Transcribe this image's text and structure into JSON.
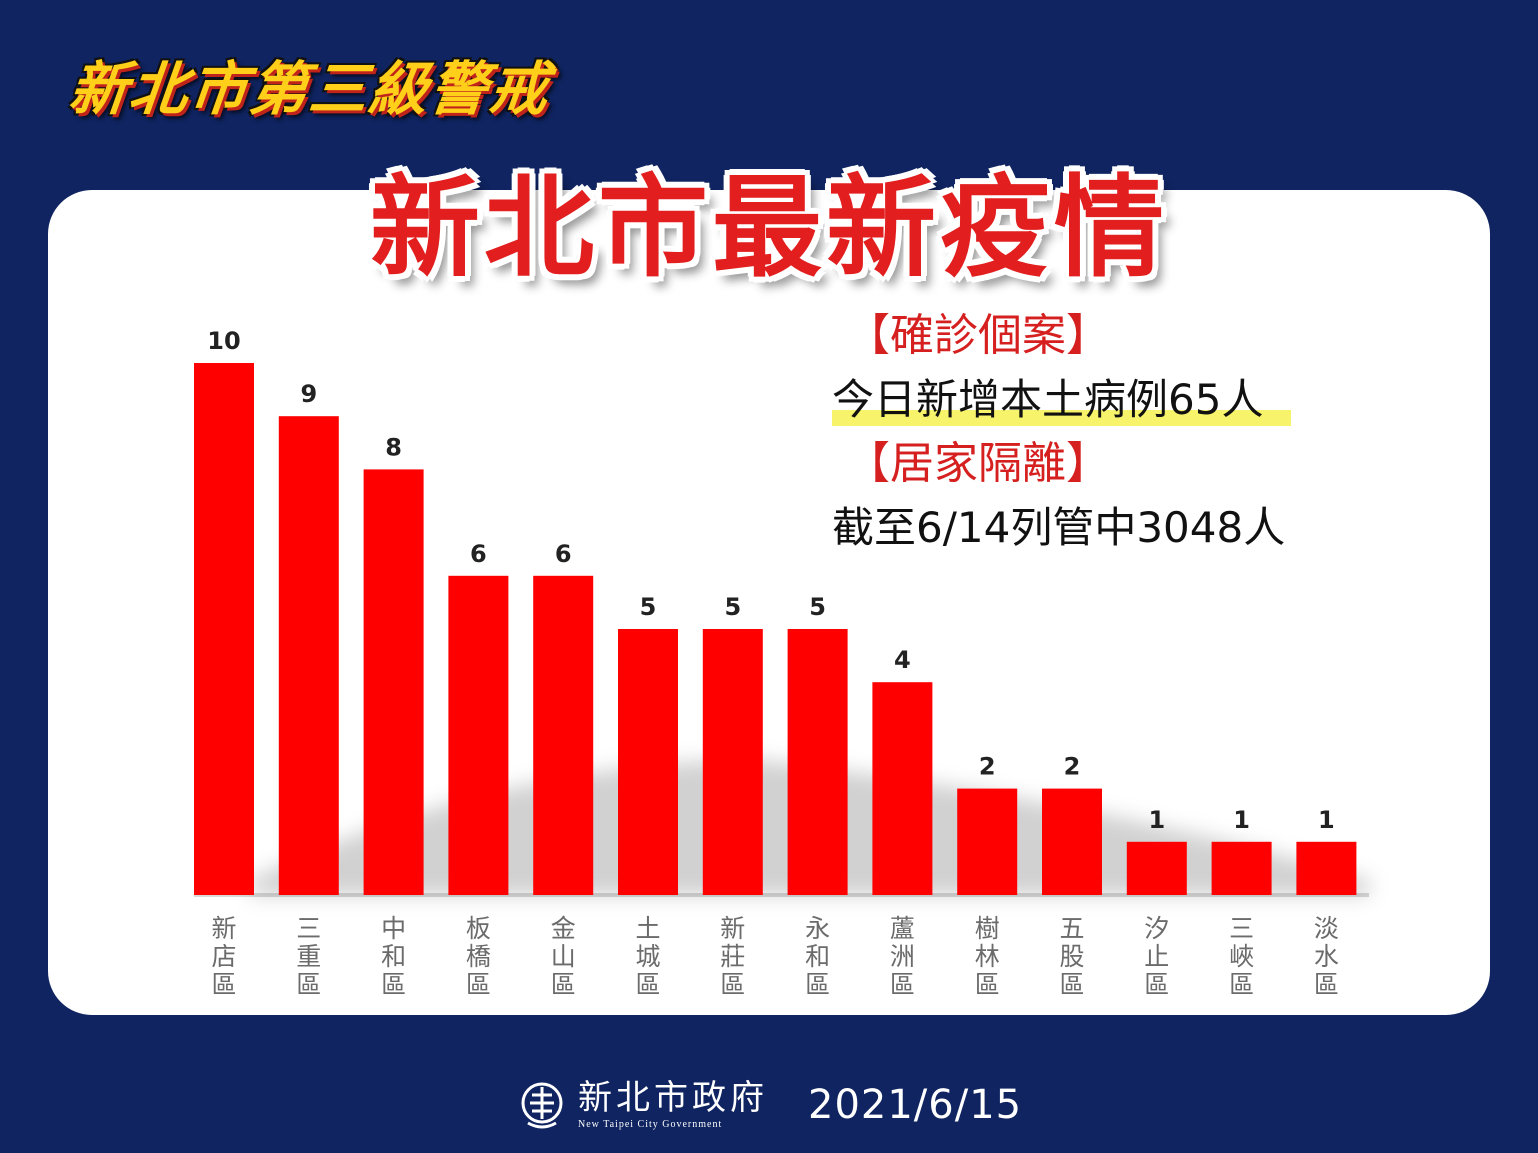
{
  "banner": "新北市第三級警戒",
  "title": "新北市最新疫情",
  "info": {
    "confirmed_header": "【確診個案】",
    "confirmed_text": "今日新增本土病例65人",
    "quarantine_header": "【居家隔離】",
    "quarantine_text": "截至6/14列管中3048人"
  },
  "footer": {
    "org_cn": "新北市政府",
    "org_en": "New Taipei City Government",
    "date": "2021/6/15"
  },
  "colors": {
    "background": "#0f2460",
    "bar": "#ff0000",
    "title": "#e21e1e",
    "highlight": "#f7f36a"
  },
  "chart_data": {
    "type": "bar",
    "categories": [
      "新店區",
      "三重區",
      "中和區",
      "板橋區",
      "金山區",
      "土城區",
      "新莊區",
      "永和區",
      "蘆洲區",
      "樹林區",
      "五股區",
      "汐止區",
      "三峽區",
      "淡水區"
    ],
    "values": [
      10,
      9,
      8,
      6,
      6,
      5,
      5,
      5,
      4,
      2,
      2,
      1,
      1,
      1
    ],
    "title": "",
    "xlabel": "",
    "ylabel": "",
    "ylim": [
      0,
      10
    ],
    "grid": false,
    "data_labels": true
  }
}
